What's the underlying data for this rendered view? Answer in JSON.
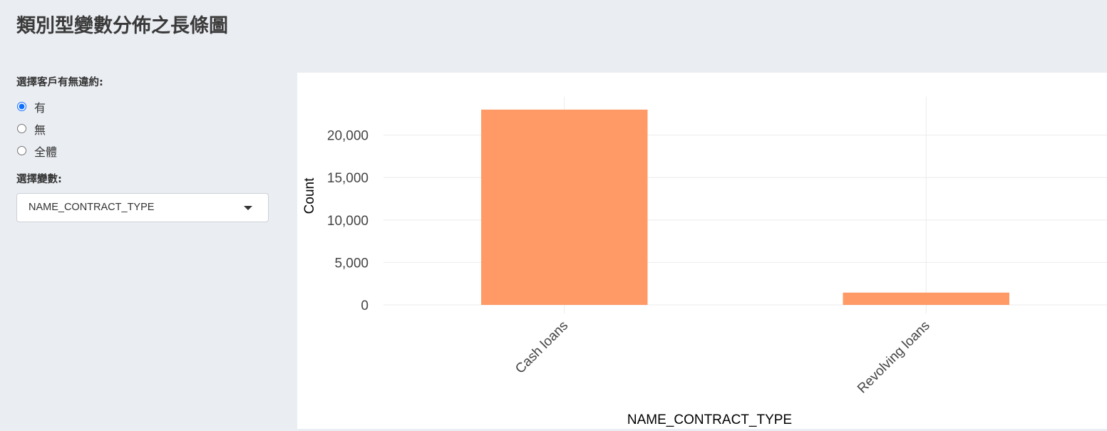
{
  "page": {
    "title": "類別型變數分佈之長條圖"
  },
  "sidebar": {
    "default_label": "選擇客戶有無違約:",
    "default_options": [
      {
        "label": "有",
        "checked": true
      },
      {
        "label": "無",
        "checked": false
      },
      {
        "label": "全體",
        "checked": false
      }
    ],
    "variable_label": "選擇變數:",
    "variable_selected": "NAME_CONTRACT_TYPE"
  },
  "colors": {
    "bar": "#ff9966",
    "grid": "#ebebeb",
    "accent": "#0d6efd"
  },
  "chart_data": {
    "type": "bar",
    "categories": [
      "Cash loans",
      "Revolving loans"
    ],
    "values": [
      23000,
      1450
    ],
    "title": "",
    "xlabel": "NAME_CONTRACT_TYPE",
    "ylabel": "Count",
    "ylim": [
      0,
      24500
    ],
    "yticks": [
      0,
      5000,
      10000,
      15000,
      20000
    ],
    "ytick_labels": [
      "0",
      "5,000",
      "10,000",
      "15,000",
      "20,000"
    ],
    "grid": true
  }
}
